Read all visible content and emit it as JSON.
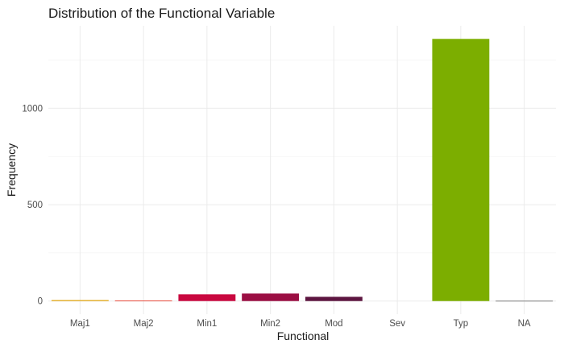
{
  "chart_data": {
    "type": "bar",
    "title": "Distribution of the Functional Variable",
    "xlabel": "Functional",
    "ylabel": "Frequency",
    "categories": [
      "Maj1",
      "Maj2",
      "Min1",
      "Min2",
      "Mod",
      "Sev",
      "Typ",
      "NA"
    ],
    "values": [
      5,
      3,
      35,
      39,
      22,
      0,
      1360,
      2
    ],
    "colors": [
      "#E1A100",
      "#E84E3F",
      "#C9083F",
      "#9B0E43",
      "#5D1640",
      "#3B0F33",
      "#7CAE00",
      "#7F7F7F"
    ],
    "yticks": [
      0,
      500,
      1000
    ],
    "ylim": [
      -68,
      1428
    ],
    "grid": true,
    "legend": "none"
  }
}
